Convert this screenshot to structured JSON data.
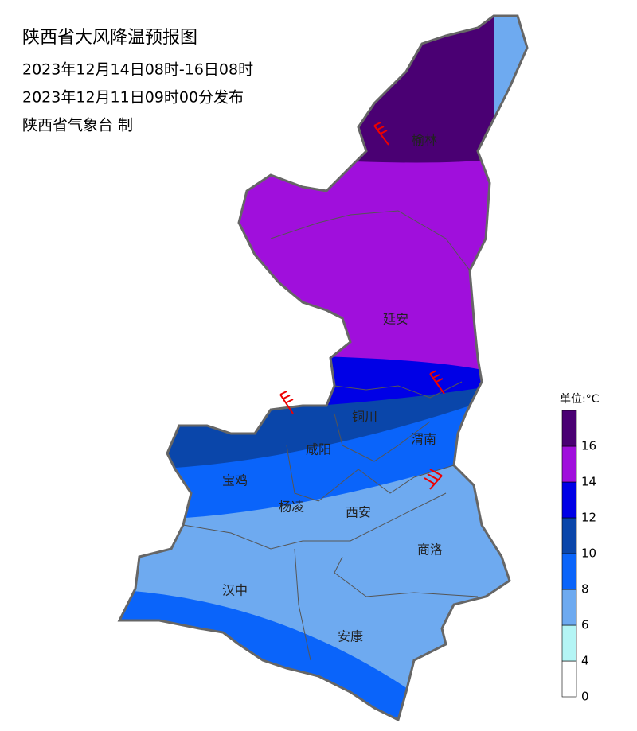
{
  "header": {
    "title": "陕西省大风降温预报图",
    "period": "2023年12月14日08时-16日08时",
    "issued": "2023年12月11日09时00分发布",
    "issuer": "陕西省气象台 制"
  },
  "regions": [
    "榆林",
    "延安",
    "铜川",
    "渭南",
    "咸阳",
    "宝鸡",
    "杨凌",
    "西安",
    "商洛",
    "汉中",
    "安康"
  ],
  "legend": {
    "title": "单位:°C",
    "ticks": [
      "0",
      "4",
      "6",
      "8",
      "10",
      "12",
      "14",
      "16"
    ],
    "colors": [
      "#ffffff",
      "#b4f5f5",
      "#6eaaf0",
      "#0a64fa",
      "#0a46aa",
      "#0000e6",
      "#a00fdc",
      "#4a0073"
    ]
  }
}
